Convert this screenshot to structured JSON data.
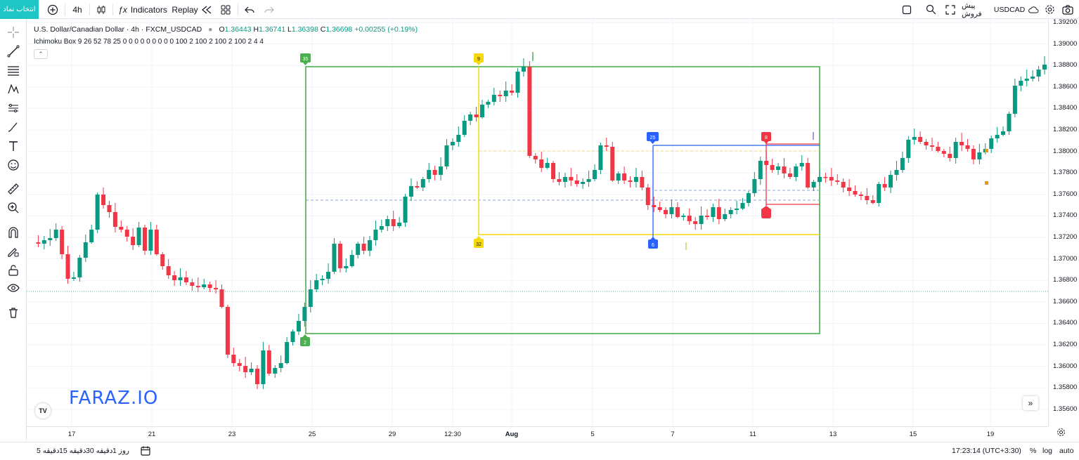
{
  "toolbar": {
    "symbol_search_label": "انتخاب نماد",
    "interval": "4h",
    "indicators_label": "Indicators",
    "replay_label": "Replay",
    "symbol_name": "USDCAD",
    "symbol_desc": "پیش فروش"
  },
  "legend": {
    "title": "U.S. Dollar/Canadian Dollar · 4h · FXCM_USDCAD",
    "o_label": "O",
    "o": "1.36443",
    "h_label": "H",
    "h": "1.36741",
    "l_label": "L",
    "l": "1.36398",
    "c_label": "C",
    "c": "1.36698",
    "change": "+0.00255 (+0.19%)"
  },
  "indicator": {
    "text": "Ichimoku Box 9 26 52 78 25 0 0 0 0 0 0 0 0 0 100 2 100 2 100 2 100 2 4 4"
  },
  "watermark": "FARAZ.IO",
  "tv_logo": "TV",
  "markers": {
    "green_top": "35",
    "green_bottom": "2",
    "yellow_top": "9",
    "yellow_bottom": "32",
    "blue_top": "25",
    "blue_bottom": "6",
    "red_top": "8"
  },
  "price_axis": {
    "labels": [
      "1.39200",
      "1.39000",
      "1.38800",
      "1.38600",
      "1.38400",
      "1.38200",
      "1.38000",
      "1.37800",
      "1.37600",
      "1.37400",
      "1.37200",
      "1.37000",
      "1.36800",
      "1.36600",
      "1.36400",
      "1.36200",
      "1.36000",
      "1.35800",
      "1.35600"
    ]
  },
  "time_axis": {
    "labels": [
      "17",
      "21",
      "23",
      "25",
      "29",
      "12:30",
      "Aug",
      "5",
      "7",
      "11",
      "13",
      "15",
      "19"
    ]
  },
  "bottombar": {
    "ranges": [
      "5 دقیقه",
      "15 دقیقه",
      "30 دقیقه",
      "1 روز"
    ],
    "clock": "17:23:14 (UTC+3:30)",
    "percent": "%",
    "log": "log",
    "auto": "auto"
  },
  "colors": {
    "up": "#089981",
    "down": "#f23645",
    "box_green": "#4caf50",
    "box_yellow": "#f5d90a",
    "box_blue": "#2962ff",
    "box_red": "#f23645",
    "accent": "#20c6c6",
    "watermark": "#2962ff"
  }
}
